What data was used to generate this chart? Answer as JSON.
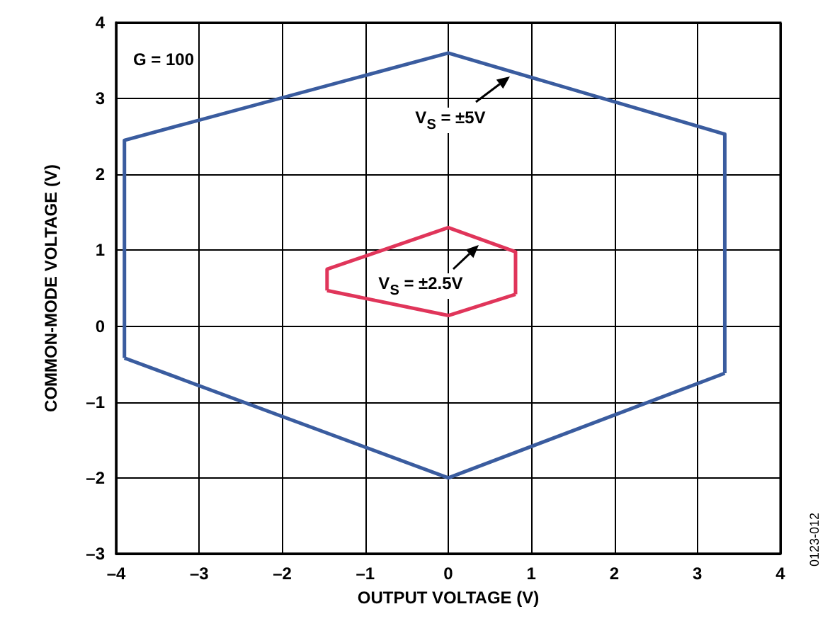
{
  "chart_data": {
    "type": "line",
    "xlabel": "OUTPUT VOLTAGE (V)",
    "ylabel": "COMMON-MODE VOLTAGE (V)",
    "xlim": [
      -4,
      4
    ],
    "xticks": [
      {
        "value": -4,
        "label": "–4"
      },
      {
        "value": -3,
        "label": "–3"
      },
      {
        "value": -2,
        "label": "–2"
      },
      {
        "value": -1,
        "label": "–1"
      },
      0,
      1,
      2,
      3,
      4
    ],
    "ylim": [
      -3,
      4
    ],
    "yticks": [
      {
        "value": -3,
        "label": "–3"
      },
      {
        "value": -2,
        "label": "–2"
      },
      {
        "value": -1,
        "label": "–1"
      },
      0,
      1,
      2,
      3,
      4
    ],
    "grid": true,
    "marker": "none",
    "line_style": "solid",
    "series": [
      {
        "color": "#3a5c9f",
        "x": [
          -3.9,
          -3.9,
          0,
          3.33,
          3.33
        ],
        "values": [
          -0.42,
          2.45,
          3.6,
          2.53,
          -0.62
        ]
      },
      {
        "color": "#3a5c9f",
        "x": [
          -3.9,
          0,
          3.33
        ],
        "values": [
          -0.42,
          -2,
          -0.62
        ]
      },
      {
        "color": "#e0355a",
        "x": [
          -1.46,
          -1.46,
          0,
          0.81,
          0.81
        ],
        "values": [
          0.47,
          0.75,
          1.3,
          0.98,
          0.42
        ]
      },
      {
        "color": "#e0355a",
        "x": [
          -1.46,
          0,
          0.81
        ],
        "values": [
          0.47,
          0.14,
          0.42
        ]
      }
    ],
    "annotations": [
      "G = 100",
      "V$_{S}$ = ±5V",
      "V$_{S}$ = ±2.5V",
      "0123-012"
    ]
  }
}
